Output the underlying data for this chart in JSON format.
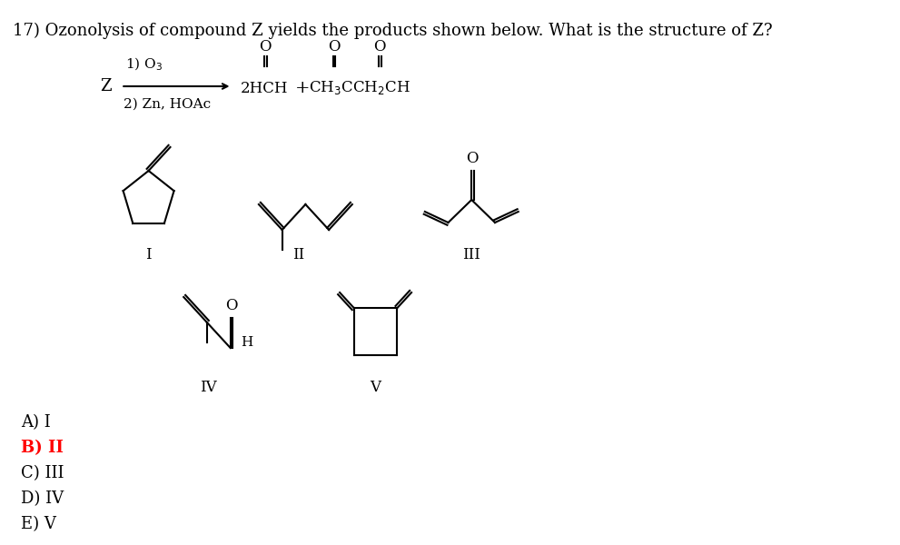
{
  "title": "17) Ozonolysis of compound Z yields the products shown below. What is the structure of Z?",
  "background_color": "#ffffff",
  "answer_options": [
    "A) I",
    "B) II",
    "C) III",
    "D) IV",
    "E) V"
  ],
  "answer_colors": [
    "#000000",
    "#ff0000",
    "#000000",
    "#000000",
    "#000000"
  ],
  "font_size_title": 13,
  "font_size_roman": 12,
  "font_size_answer": 13
}
